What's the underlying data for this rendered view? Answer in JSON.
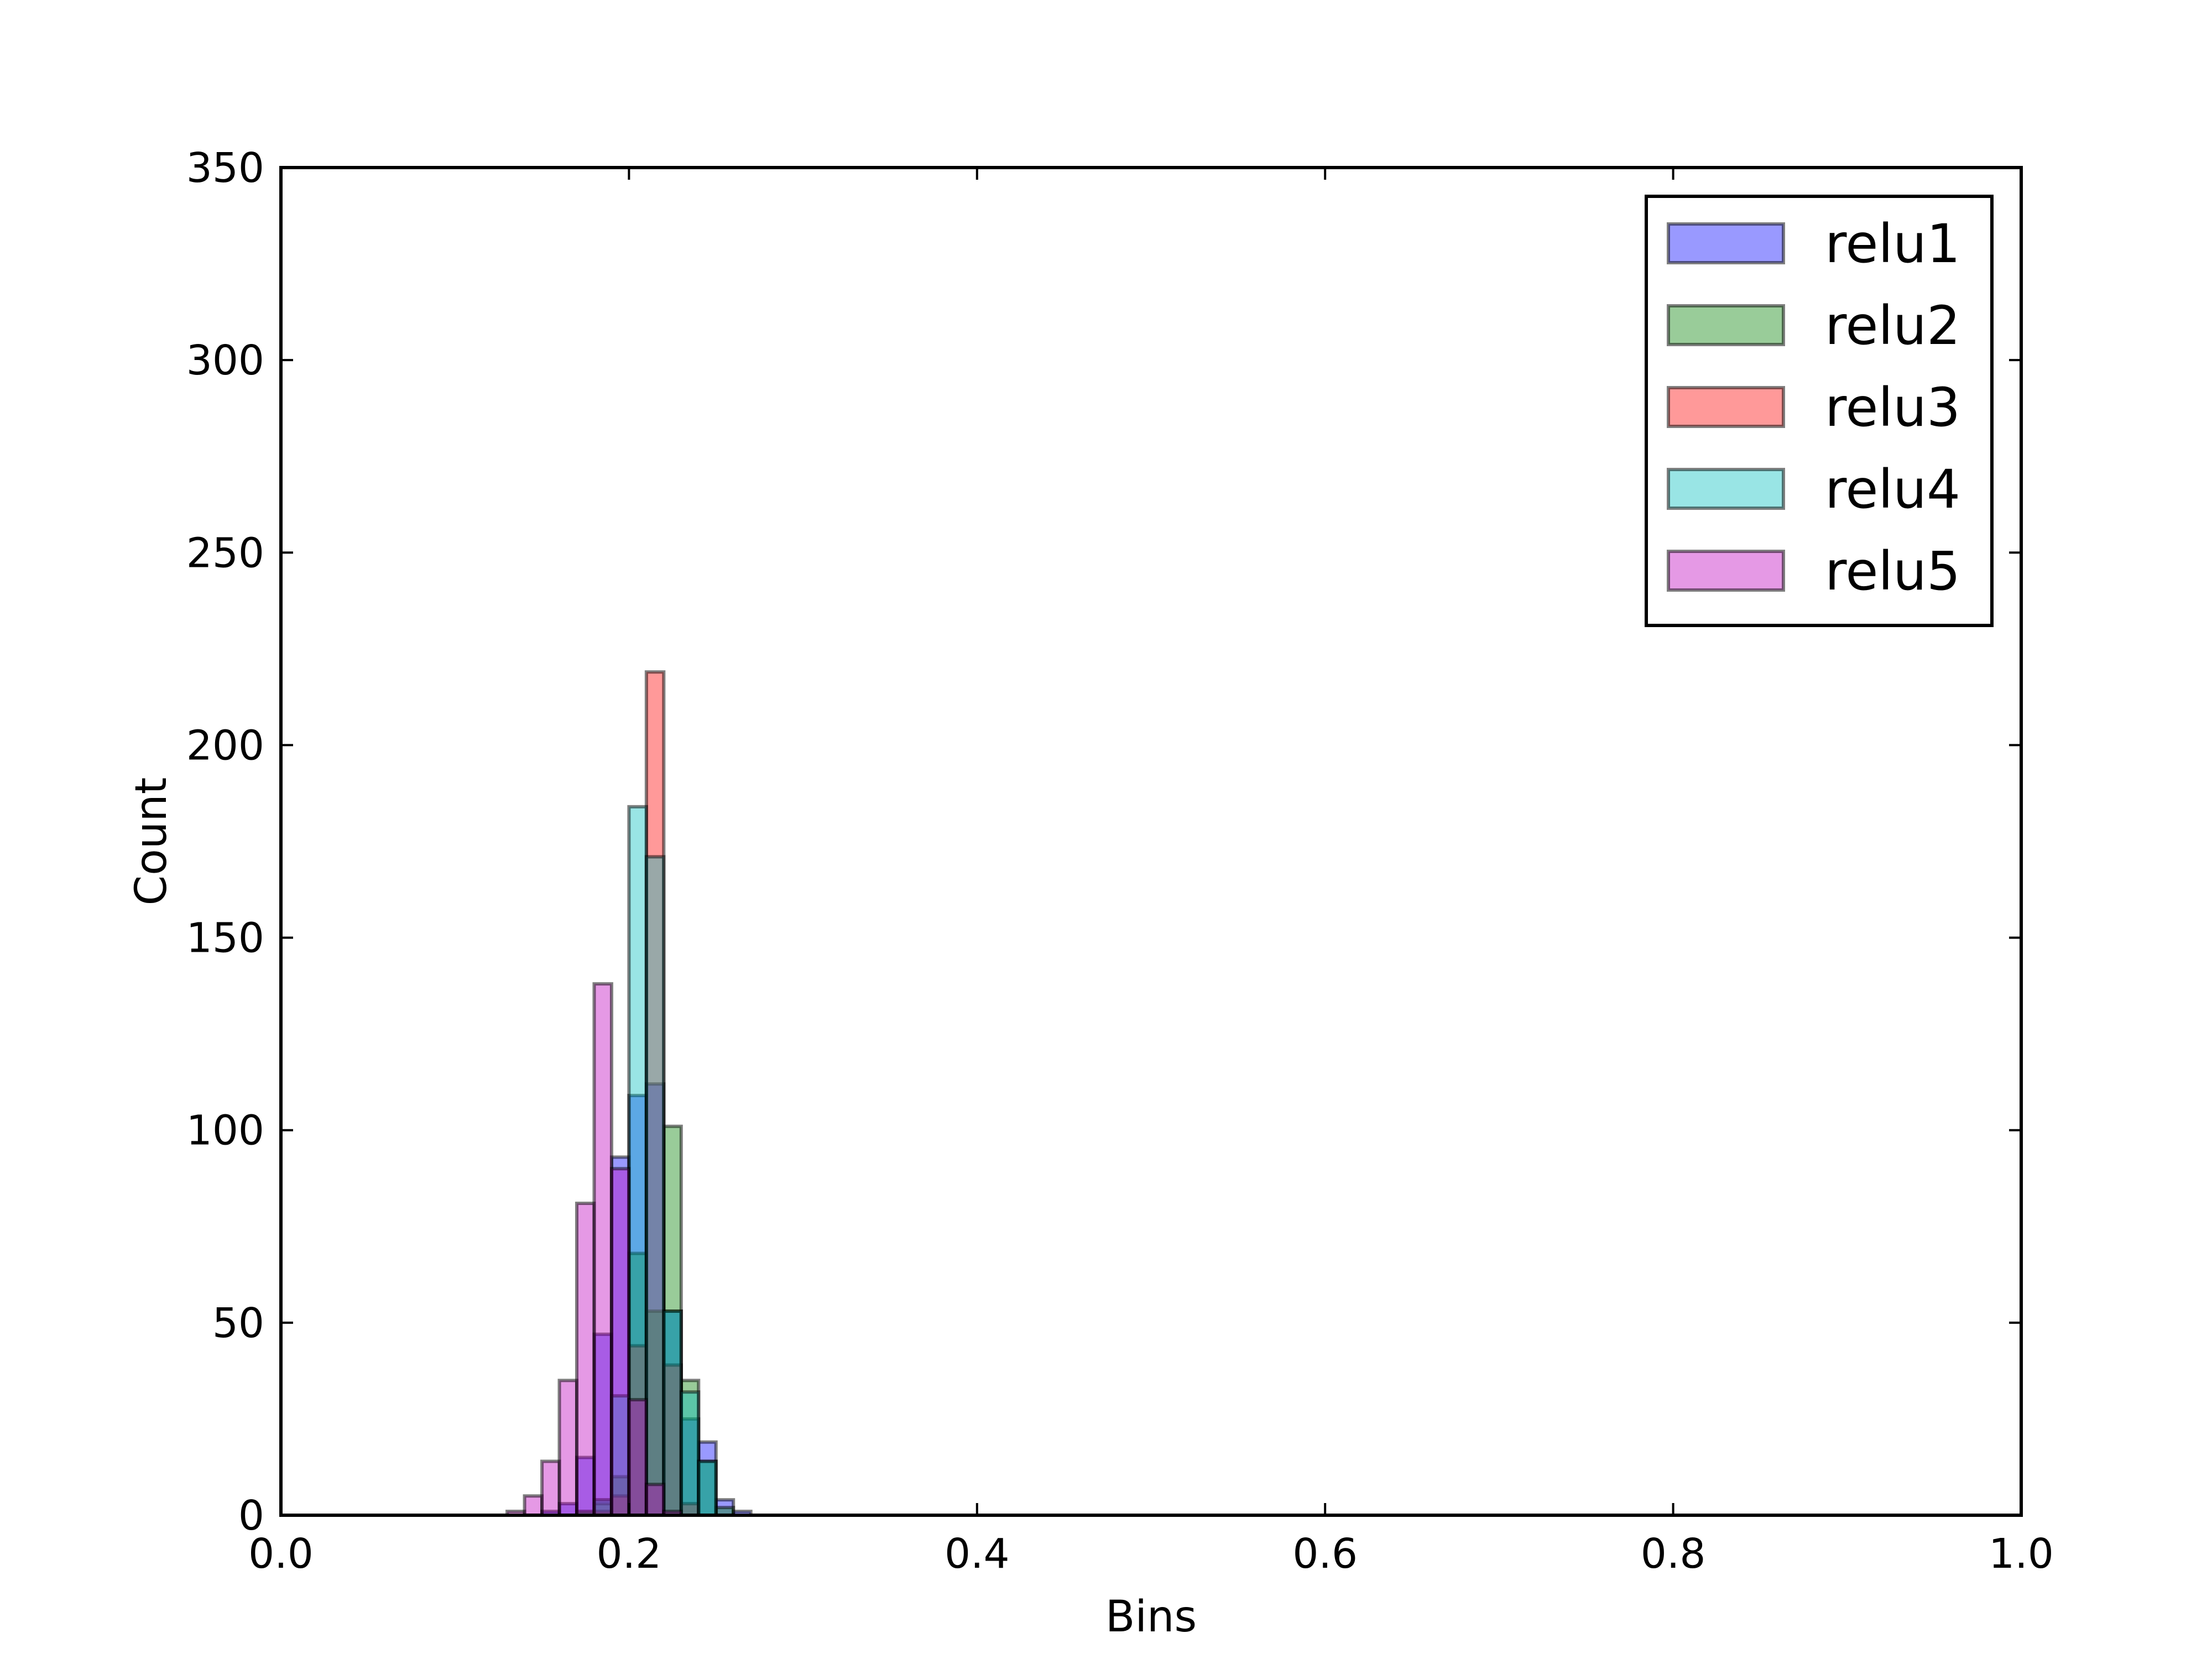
{
  "chart_data": {
    "type": "bar",
    "title": "",
    "xlabel": "Bins",
    "ylabel": "Count",
    "xlim": [
      0.0,
      1.0
    ],
    "ylim": [
      0,
      350
    ],
    "bin_width": 0.01,
    "x_ticks": [
      "0.0",
      "0.2",
      "0.4",
      "0.6",
      "0.8",
      "1.0"
    ],
    "y_ticks": [
      "0",
      "50",
      "100",
      "150",
      "200",
      "250",
      "300",
      "350"
    ],
    "grid": false,
    "legend_position": "top-right",
    "series": [
      {
        "name": "relu1",
        "color": "#0000ff",
        "bins": [
          {
            "x": 0.15,
            "count": 1
          },
          {
            "x": 0.16,
            "count": 3
          },
          {
            "x": 0.17,
            "count": 15
          },
          {
            "x": 0.18,
            "count": 47
          },
          {
            "x": 0.19,
            "count": 93
          },
          {
            "x": 0.2,
            "count": 109
          },
          {
            "x": 0.21,
            "count": 112
          },
          {
            "x": 0.22,
            "count": 53
          },
          {
            "x": 0.23,
            "count": 25
          },
          {
            "x": 0.24,
            "count": 19
          },
          {
            "x": 0.25,
            "count": 4
          },
          {
            "x": 0.26,
            "count": 1
          }
        ]
      },
      {
        "name": "relu2",
        "color": "#008000",
        "bins": [
          {
            "x": 0.17,
            "count": 1
          },
          {
            "x": 0.18,
            "count": 3
          },
          {
            "x": 0.19,
            "count": 10
          },
          {
            "x": 0.2,
            "count": 68
          },
          {
            "x": 0.21,
            "count": 53
          },
          {
            "x": 0.22,
            "count": 101
          },
          {
            "x": 0.23,
            "count": 35
          },
          {
            "x": 0.24,
            "count": 14
          },
          {
            "x": 0.25,
            "count": 2
          }
        ]
      },
      {
        "name": "relu3",
        "color": "#ff0000",
        "bins": [
          {
            "x": 0.18,
            "count": 1
          },
          {
            "x": 0.19,
            "count": 5
          },
          {
            "x": 0.2,
            "count": 44
          },
          {
            "x": 0.21,
            "count": 219
          },
          {
            "x": 0.22,
            "count": 39
          },
          {
            "x": 0.23,
            "count": 3
          }
        ]
      },
      {
        "name": "relu4",
        "color": "#00bfbf",
        "bins": [
          {
            "x": 0.18,
            "count": 4
          },
          {
            "x": 0.19,
            "count": 31
          },
          {
            "x": 0.2,
            "count": 184
          },
          {
            "x": 0.21,
            "count": 171
          },
          {
            "x": 0.22,
            "count": 53
          },
          {
            "x": 0.23,
            "count": 32
          },
          {
            "x": 0.24,
            "count": 14
          }
        ]
      },
      {
        "name": "relu5",
        "color": "#bf00bf",
        "bins": [
          {
            "x": 0.13,
            "count": 1
          },
          {
            "x": 0.14,
            "count": 5
          },
          {
            "x": 0.15,
            "count": 14
          },
          {
            "x": 0.16,
            "count": 35
          },
          {
            "x": 0.17,
            "count": 81
          },
          {
            "x": 0.18,
            "count": 138
          },
          {
            "x": 0.19,
            "count": 90
          },
          {
            "x": 0.2,
            "count": 30
          },
          {
            "x": 0.21,
            "count": 8
          },
          {
            "x": 0.22,
            "count": 1
          }
        ]
      }
    ]
  }
}
